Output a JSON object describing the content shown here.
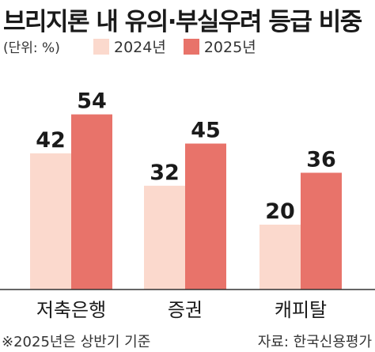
{
  "title": "브리지론 내 유의·부실우려 등급 비중",
  "unit_label": "(단위: %)",
  "legend": [
    {
      "label": "2024년",
      "color": "#fbd9cd"
    },
    {
      "label": "2025년",
      "color": "#e8736a"
    }
  ],
  "footnote": "※2025년은 상반기 기준",
  "source": "자료: 한국신용평가",
  "chart_data": {
    "type": "bar",
    "title": "브리지론 내 유의·부실우려 등급 비중",
    "categories": [
      "저축은행",
      "증권",
      "캐피탈"
    ],
    "series": [
      {
        "name": "2024년",
        "values": [
          42,
          32,
          20
        ],
        "color": "#fbd9cd"
      },
      {
        "name": "2025년",
        "values": [
          54,
          45,
          36
        ],
        "color": "#e8736a"
      }
    ],
    "ylabel": "",
    "xlabel": "",
    "unit": "%",
    "grid": false,
    "legend_position": "top-left"
  }
}
